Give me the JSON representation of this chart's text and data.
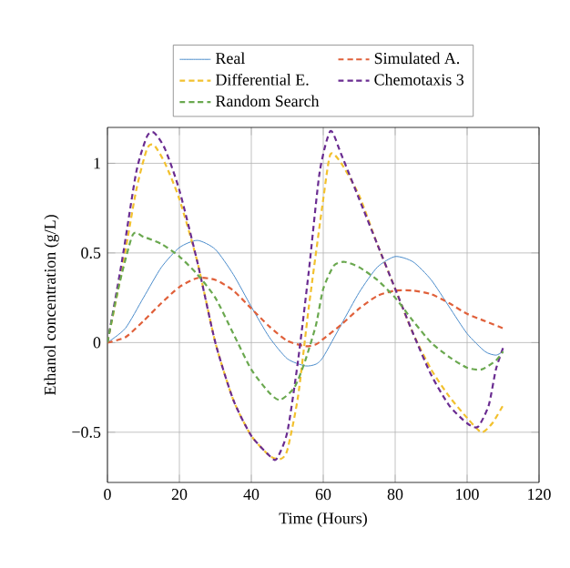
{
  "chart_data": {
    "type": "line",
    "xlabel": "Time (Hours)",
    "ylabel": "Ethanol concentration (g/L)",
    "xlim": [
      0,
      120
    ],
    "xticks": [
      0,
      20,
      40,
      60,
      80,
      100,
      120
    ],
    "ylim": [
      -0.78,
      1.2
    ],
    "yticks": [
      {
        "value": -0.5,
        "label": "−0.5"
      },
      0,
      0.5,
      1
    ],
    "grid": true,
    "legend": "top",
    "marker": "none",
    "series": [
      {
        "name": "Real",
        "color": "#4a8ccb",
        "line_style": "solid",
        "x": [
          0,
          5,
          10,
          15,
          20,
          25,
          30,
          35,
          40,
          45,
          50,
          55,
          58,
          60,
          65,
          70,
          75,
          80,
          85,
          90,
          95,
          100,
          105,
          108,
          110
        ],
        "values": [
          0,
          0.08,
          0.25,
          0.42,
          0.53,
          0.57,
          0.52,
          0.38,
          0.2,
          0.03,
          -0.09,
          -0.13,
          -0.12,
          -0.08,
          0.1,
          0.28,
          0.42,
          0.48,
          0.45,
          0.35,
          0.2,
          0.05,
          -0.05,
          -0.07,
          -0.05
        ]
      },
      {
        "name": "Simulated A.",
        "color": "#e0603a",
        "line_style": "dashed",
        "x": [
          0,
          5,
          10,
          15,
          20,
          25,
          30,
          35,
          40,
          45,
          50,
          55,
          58,
          60,
          65,
          70,
          75,
          80,
          85,
          90,
          95,
          100,
          105,
          110
        ],
        "values": [
          0,
          0.03,
          0.12,
          0.22,
          0.31,
          0.36,
          0.35,
          0.29,
          0.19,
          0.09,
          0.01,
          -0.02,
          -0.01,
          0.02,
          0.1,
          0.19,
          0.26,
          0.29,
          0.29,
          0.27,
          0.22,
          0.16,
          0.12,
          0.08
        ]
      },
      {
        "name": "Differential E.",
        "color": "#f2c12e",
        "line_style": "dashed",
        "x": [
          0,
          4,
          8,
          11,
          13,
          16,
          20,
          25,
          30,
          35,
          40,
          45,
          48,
          50,
          53,
          56,
          60,
          62,
          65,
          70,
          75,
          80,
          85,
          90,
          95,
          100,
          104,
          107,
          110
        ],
        "values": [
          0,
          0.4,
          0.85,
          1.08,
          1.1,
          1.0,
          0.8,
          0.45,
          0.0,
          -0.32,
          -0.52,
          -0.63,
          -0.65,
          -0.6,
          -0.3,
          0.2,
          0.8,
          1.05,
          1.0,
          0.82,
          0.55,
          0.3,
          0.05,
          -0.15,
          -0.3,
          -0.42,
          -0.5,
          -0.45,
          -0.35
        ]
      },
      {
        "name": "Chemotaxis 3",
        "color": "#6a2c91",
        "line_style": "dashed",
        "x": [
          0,
          4,
          8,
          11,
          13,
          16,
          20,
          25,
          30,
          35,
          40,
          45,
          47,
          50,
          53,
          56,
          59,
          62,
          65,
          70,
          75,
          80,
          85,
          90,
          95,
          100,
          103,
          106,
          108,
          110
        ],
        "values": [
          0,
          0.45,
          0.95,
          1.15,
          1.17,
          1.08,
          0.85,
          0.45,
          0.0,
          -0.32,
          -0.52,
          -0.63,
          -0.65,
          -0.5,
          -0.1,
          0.4,
          0.95,
          1.18,
          1.05,
          0.8,
          0.55,
          0.3,
          0.05,
          -0.18,
          -0.35,
          -0.45,
          -0.47,
          -0.35,
          -0.15,
          -0.03
        ]
      },
      {
        "name": "Random Search",
        "color": "#6aa84f",
        "line_style": "dashed",
        "x": [
          0,
          3,
          7,
          10,
          15,
          20,
          25,
          30,
          35,
          40,
          45,
          48,
          52,
          55,
          58,
          60,
          63,
          66,
          70,
          75,
          80,
          85,
          90,
          95,
          100,
          104,
          108,
          110
        ],
        "values": [
          0,
          0.3,
          0.6,
          0.59,
          0.55,
          0.48,
          0.38,
          0.25,
          0.05,
          -0.15,
          -0.28,
          -0.32,
          -0.25,
          -0.1,
          0.1,
          0.3,
          0.43,
          0.45,
          0.42,
          0.35,
          0.25,
          0.12,
          0.0,
          -0.08,
          -0.14,
          -0.15,
          -0.1,
          -0.05
        ]
      }
    ]
  }
}
